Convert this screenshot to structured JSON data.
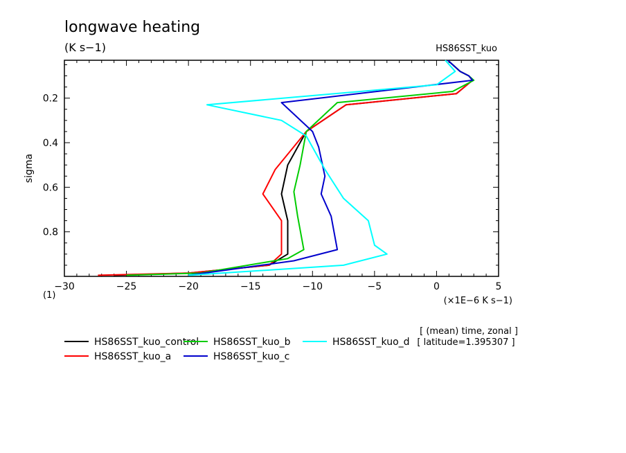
{
  "chart_data": {
    "type": "line",
    "title": "longwave heating",
    "units": "(K s−1)",
    "experiment": "HS86SST_kuo",
    "ylabel": "sigma",
    "xlabel": "(×1E−6 K s−1)",
    "x_unit_note": "(1)",
    "xlim": [
      -30,
      5
    ],
    "ylim": [
      1.0,
      0.03
    ],
    "xticks": [
      -30,
      -25,
      -20,
      -15,
      -10,
      -5,
      0,
      5
    ],
    "xtick_labels": [
      "−30",
      "−25",
      "−20",
      "−15",
      "−10",
      "−5",
      "0",
      "5"
    ],
    "yticks": [
      0.2,
      0.4,
      0.6,
      0.8
    ],
    "ytick_labels": [
      "0.2",
      "0.4",
      "0.6",
      "0.8"
    ],
    "annotation_lines": [
      "[ (mean) time, zonal ]",
      "[ latitude=1.395307 ]"
    ],
    "series": [
      {
        "name": "HS86SST_kuo_control",
        "color": "#000000",
        "x": [
          0.9,
          1.9,
          2.6,
          2.9,
          1.6,
          -7.3,
          -10.5,
          -12.0,
          -12.5,
          -12.0,
          -12.0,
          -13.5,
          -20.0,
          -26.0
        ],
        "y": [
          0.03,
          0.08,
          0.1,
          0.12,
          0.18,
          0.23,
          0.35,
          0.5,
          0.63,
          0.75,
          0.9,
          0.95,
          0.985,
          0.995
        ]
      },
      {
        "name": "HS86SST_kuo_a",
        "color": "#ff0000",
        "x": [
          0.9,
          1.9,
          2.6,
          2.9,
          1.6,
          -7.3,
          -10.5,
          -13.0,
          -14.0,
          -12.5,
          -12.5,
          -13.5,
          -20.0,
          -27.3
        ],
        "y": [
          0.03,
          0.08,
          0.1,
          0.12,
          0.18,
          0.23,
          0.35,
          0.52,
          0.63,
          0.75,
          0.9,
          0.95,
          0.985,
          0.995
        ]
      },
      {
        "name": "HS86SST_kuo_b",
        "color": "#00cc00",
        "x": [
          0.9,
          1.9,
          2.6,
          3.0,
          1.3,
          -8.0,
          -10.5,
          -11.0,
          -11.5,
          -11.2,
          -10.7,
          -12.0,
          -19.0,
          -25.0
        ],
        "y": [
          0.03,
          0.08,
          0.1,
          0.12,
          0.17,
          0.22,
          0.35,
          0.5,
          0.62,
          0.73,
          0.88,
          0.92,
          0.985,
          0.995
        ]
      },
      {
        "name": "HS86SST_kuo_c",
        "color": "#0000cc",
        "x": [
          0.9,
          1.9,
          2.6,
          2.9,
          -12.5,
          -10.0,
          -9.5,
          -9.0,
          -9.3,
          -8.5,
          -8.0,
          -11.5,
          -20.0
        ],
        "y": [
          0.03,
          0.08,
          0.1,
          0.12,
          0.22,
          0.35,
          0.42,
          0.55,
          0.63,
          0.73,
          0.88,
          0.93,
          0.995
        ]
      },
      {
        "name": "HS86SST_kuo_d",
        "color": "#00ffff",
        "x": [
          0.7,
          1.5,
          0.0,
          -18.5,
          -12.5,
          -10.5,
          -9.0,
          -7.5,
          -5.5,
          -5.0,
          -4.0,
          -7.5,
          -20.0
        ],
        "y": [
          0.03,
          0.08,
          0.14,
          0.23,
          0.3,
          0.37,
          0.52,
          0.65,
          0.75,
          0.86,
          0.9,
          0.95,
          0.995
        ]
      }
    ]
  }
}
